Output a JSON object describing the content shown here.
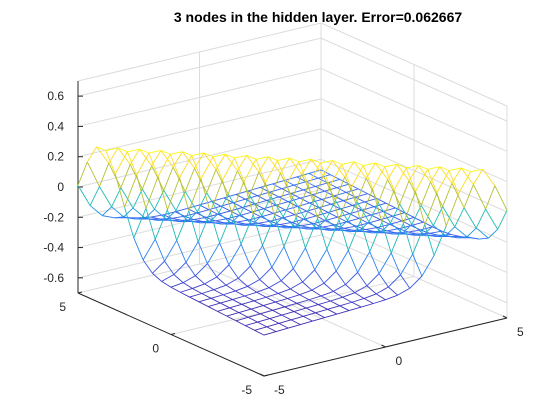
{
  "chart_data": {
    "type": "surface",
    "title": "3 nodes in the hidden layer. Error=0.062667",
    "xlabel": "",
    "ylabel": "",
    "zlabel": "",
    "xlim": [
      -5,
      5
    ],
    "ylim": [
      -5,
      5
    ],
    "zlim": [
      -0.7,
      0.7
    ],
    "x_ticks": [
      "-5",
      "0",
      "5"
    ],
    "y_ticks": [
      "-5",
      "0",
      "5"
    ],
    "z_ticks": [
      "-0.6",
      "-0.4",
      "-0.2",
      "0",
      "0.2",
      "0.4",
      "0.6"
    ],
    "grid": true,
    "colormap": "parula",
    "colormap_stops": [
      "#3e26a8",
      "#3d53e3",
      "#2d7ef8",
      "#1aa6d9",
      "#24c0ab",
      "#7ec948",
      "#d6bd27",
      "#fdd12f",
      "#f9fb14"
    ],
    "surface_peak": 0.35,
    "surface_trough": -0.3,
    "surface_floor": -0.35,
    "x_samples": 21,
    "y_samples": 21
  }
}
